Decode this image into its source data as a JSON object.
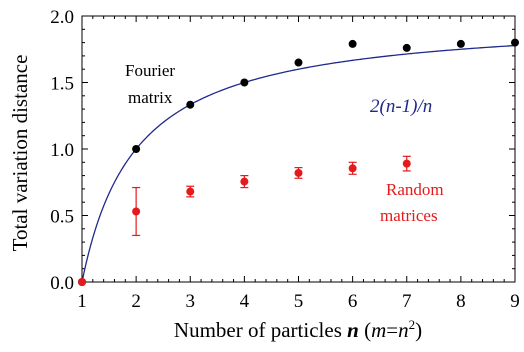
{
  "chart_data": {
    "type": "scatter",
    "xlabel_parts": {
      "prefix": "Number of particles ",
      "n": "n",
      "mid": " (",
      "m": "m",
      "eq": "=",
      "n2": "n",
      "exp": "2",
      "suffix": ")"
    },
    "ylabel": "Total variation distance",
    "xlim": [
      1,
      9
    ],
    "ylim": [
      0,
      2
    ],
    "x_ticks": [
      1,
      2,
      3,
      4,
      5,
      6,
      7,
      8,
      9
    ],
    "x_tick_labels": [
      "1",
      "2",
      "3",
      "4",
      "5",
      "6",
      "7",
      "8",
      "9"
    ],
    "y_ticks": [
      0,
      0.5,
      1,
      1.5,
      2
    ],
    "y_tick_labels": [
      "0.0",
      "0.5",
      "1.0",
      "1.5",
      "2.0"
    ],
    "grid": false,
    "curve": {
      "label": "2(n-1)/n",
      "formula": "2(n-1)/n",
      "color": "#1f2a8c"
    },
    "series": [
      {
        "name": "Fourier matrix",
        "label_lines": [
          "Fourier",
          "matrix"
        ],
        "color": "#000000",
        "points": [
          {
            "x": 1,
            "y": 0.0
          },
          {
            "x": 2,
            "y": 1.0
          },
          {
            "x": 3,
            "y": 1.333
          },
          {
            "x": 4,
            "y": 1.5
          },
          {
            "x": 5,
            "y": 1.65
          },
          {
            "x": 6,
            "y": 1.79
          },
          {
            "x": 7,
            "y": 1.76
          },
          {
            "x": 8,
            "y": 1.79
          },
          {
            "x": 9,
            "y": 1.8
          }
        ]
      },
      {
        "name": "Random matrices",
        "label_lines": [
          "Random",
          "matrices"
        ],
        "color": "#e41a1c",
        "points": [
          {
            "x": 1,
            "y": 0.0,
            "err": 0
          },
          {
            "x": 2,
            "y": 0.53,
            "err": 0.18
          },
          {
            "x": 3,
            "y": 0.68,
            "err": 0.04
          },
          {
            "x": 4,
            "y": 0.755,
            "err": 0.045
          },
          {
            "x": 5,
            "y": 0.82,
            "err": 0.04
          },
          {
            "x": 6,
            "y": 0.855,
            "err": 0.045
          },
          {
            "x": 7,
            "y": 0.89,
            "err": 0.055
          }
        ]
      }
    ]
  }
}
